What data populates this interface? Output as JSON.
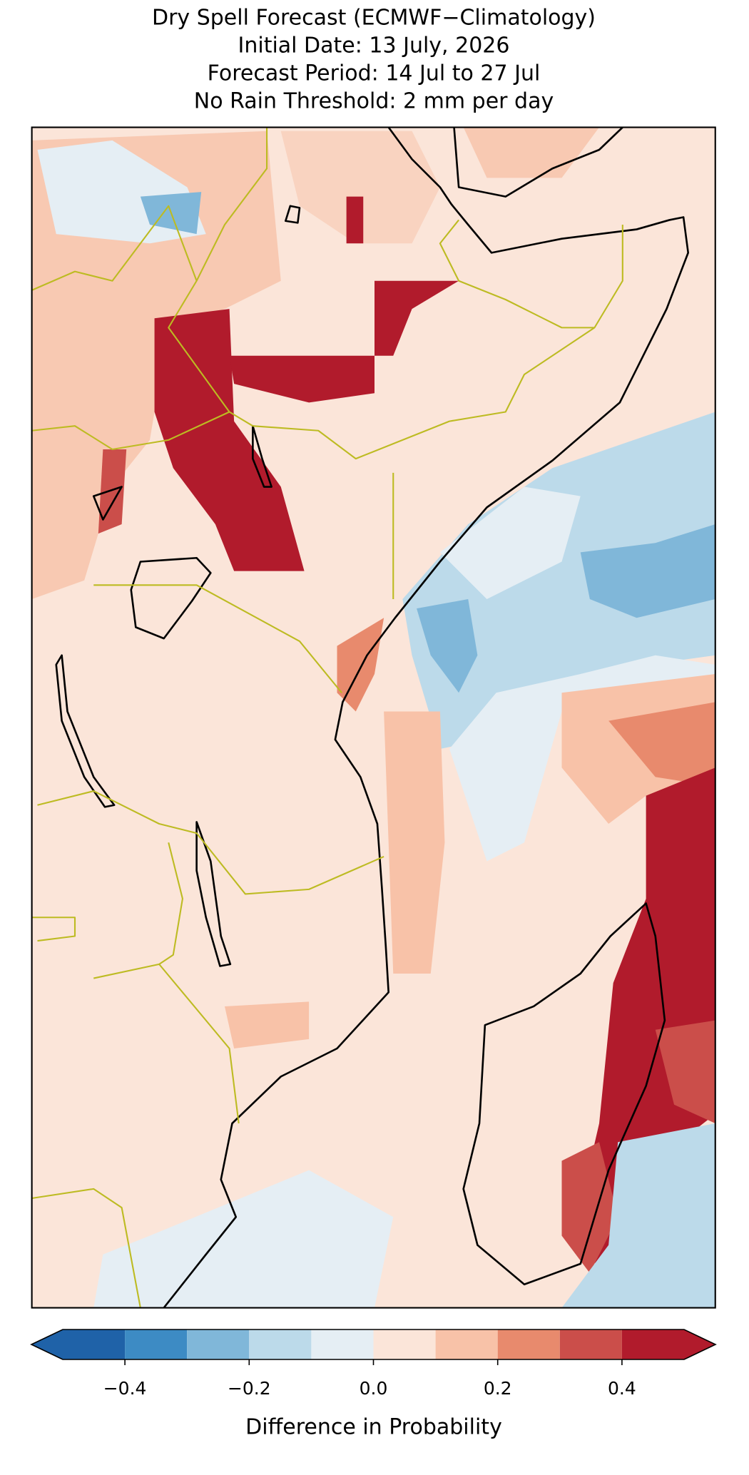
{
  "title_lines": [
    "Dry Spell Forecast (ECMWF−Climatology)",
    "Initial Date: 13 July, 2026",
    "Forecast Period: 14 Jul to 27 Jul",
    "No Rain Threshold: 2 mm per day"
  ],
  "colorbar": {
    "levels": [
      -0.5,
      -0.4,
      -0.3,
      -0.2,
      -0.1,
      0,
      0.1,
      0.2,
      0.3,
      0.4,
      0.5
    ],
    "colors": [
      "#1f62a8",
      "#3d8bc4",
      "#80b7d9",
      "#bcdaea",
      "#e5eef4",
      "#fbe5d9",
      "#f8c2a8",
      "#e88a6d",
      "#cb4e4a",
      "#b11b2c"
    ],
    "extend": "both",
    "ticks": [
      {
        "value": -0.4,
        "label": "−0.4"
      },
      {
        "value": -0.2,
        "label": "−0.2"
      },
      {
        "value": 0,
        "label": "0.0"
      },
      0.2,
      0.4
    ],
    "label": "Difference in Probability"
  }
}
